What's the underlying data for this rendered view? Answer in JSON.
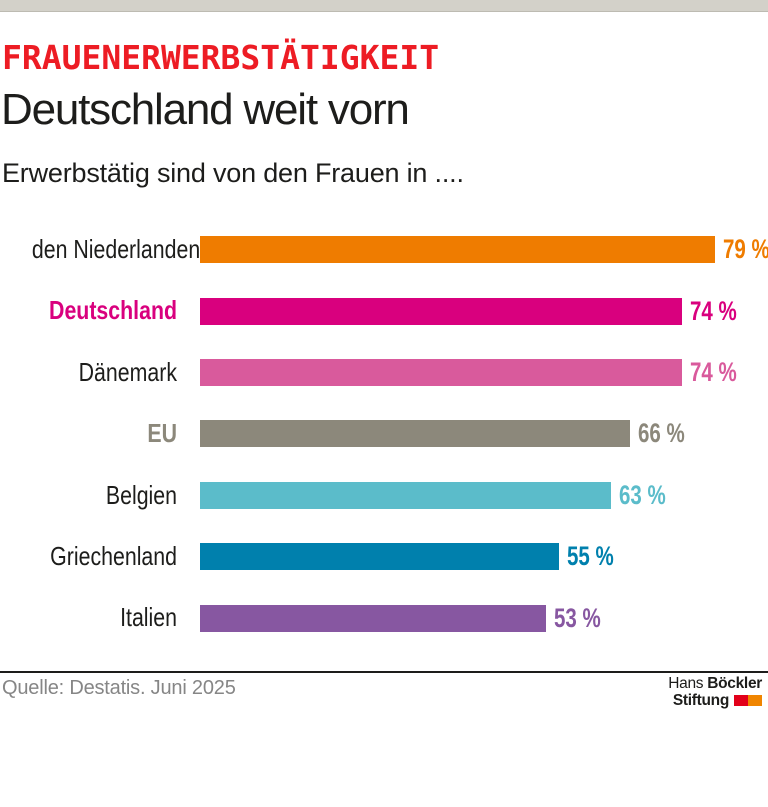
{
  "meta": {
    "top_strip_color": "#d3d1c9"
  },
  "header": {
    "kicker": "FRAUENERWERBSTÄTIGKEIT",
    "kicker_color": "#ed1c24",
    "title": "Deutschland weit vorn",
    "subtitle": "Erwerbstätig sind von den Frauen in ...."
  },
  "chart_data": {
    "type": "bar",
    "orientation": "horizontal",
    "kicker": "FRAUENERWERBSTÄTIGKEIT",
    "title": "Deutschland weit vorn",
    "subtitle": "Erwerbstätig sind von den Frauen in ....",
    "unit": "%",
    "xlim": [
      0,
      79
    ],
    "grid": false,
    "legend": false,
    "categories": [
      "den Niederlanden",
      "Deutschland",
      "Dänemark",
      "EU",
      "Belgien",
      "Griechenland",
      "Italien"
    ],
    "values": [
      79,
      74,
      74,
      66,
      63,
      55,
      53
    ],
    "rows": [
      {
        "label": "den Niederlanden",
        "value": 79,
        "value_label": "79 %",
        "bar_color": "#ef7c00",
        "label_color": "#1d1d1b",
        "label_bold": false
      },
      {
        "label": "Deutschland",
        "value": 74,
        "value_label": "74 %",
        "bar_color": "#d9007e",
        "label_color": "#d9007e",
        "label_bold": true
      },
      {
        "label": "Dänemark",
        "value": 74,
        "value_label": "74 %",
        "bar_color": "#d95a9c",
        "label_color": "#1d1d1b",
        "label_bold": false
      },
      {
        "label": "EU",
        "value": 66,
        "value_label": "66 %",
        "bar_color": "#8c887b",
        "label_color": "#8c887b",
        "label_bold": true
      },
      {
        "label": "Belgien",
        "value": 63,
        "value_label": "63 %",
        "bar_color": "#5bbcca",
        "label_color": "#1d1d1b",
        "label_bold": false
      },
      {
        "label": "Griechenland",
        "value": 55,
        "value_label": "55 %",
        "bar_color": "#0080ad",
        "label_color": "#1d1d1b",
        "label_bold": false
      },
      {
        "label": "Italien",
        "value": 53,
        "value_label": "53 %",
        "bar_color": "#8757a1",
        "label_color": "#1d1d1b",
        "label_bold": false
      }
    ]
  },
  "footer": {
    "source": "Quelle: Destatis. Juni 2025",
    "logo": {
      "name_regular": "Hans ",
      "name_bold": "Böckler",
      "line2": "Stiftung",
      "square_colors": [
        "#e2001a",
        "#f08500"
      ]
    }
  }
}
